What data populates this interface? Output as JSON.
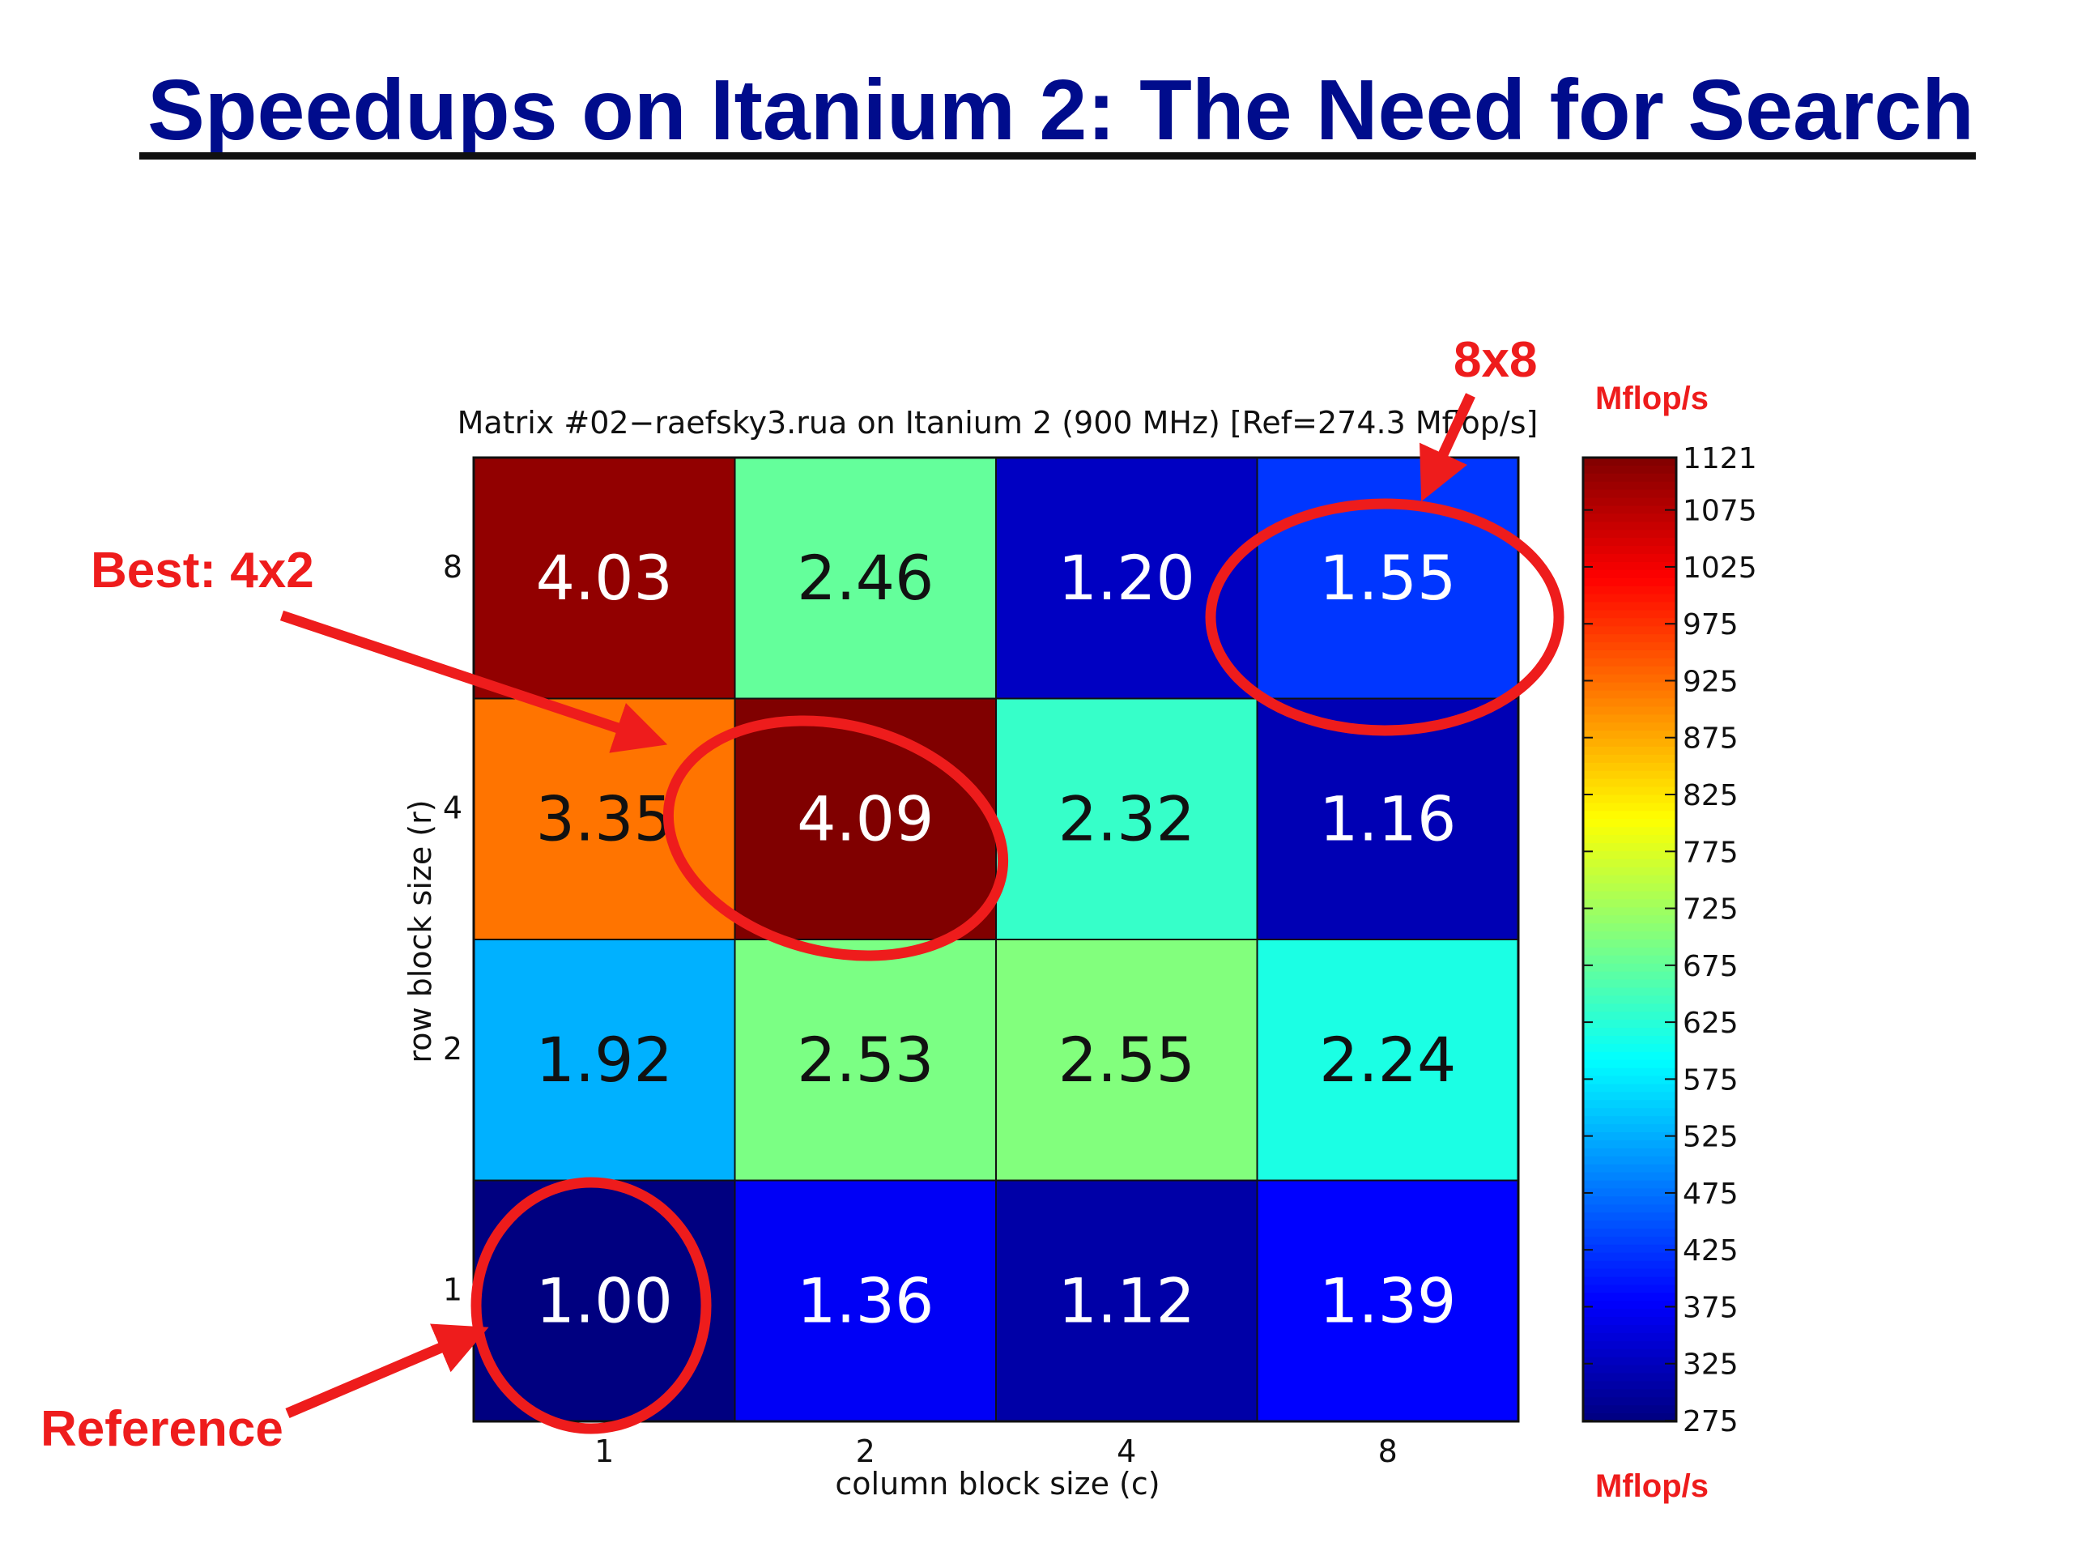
{
  "slide": {
    "title": "Speedups on Itanium 2: The Need for Search"
  },
  "annotations": {
    "best": "Best: 4x2",
    "eight": "8x8",
    "reference": "Reference",
    "unit_top": "Mflop/s",
    "unit_bottom": "Mflop/s",
    "color": "#ee1c1c"
  },
  "chart_data": {
    "type": "heatmap",
    "title": "Matrix #02−raefsky3.rua on Itanium 2 (900 MHz) [Ref=274.3 Mflop/s]",
    "xlabel": "column block size (c)",
    "ylabel": "row block size (r)",
    "x_categories": [
      "1",
      "2",
      "4",
      "8"
    ],
    "y_categories": [
      "1",
      "2",
      "4",
      "8"
    ],
    "cells": [
      {
        "r": "8",
        "c": "1",
        "speedup": "4.03"
      },
      {
        "r": "8",
        "c": "2",
        "speedup": "2.46"
      },
      {
        "r": "8",
        "c": "4",
        "speedup": "1.20"
      },
      {
        "r": "8",
        "c": "8",
        "speedup": "1.55"
      },
      {
        "r": "4",
        "c": "1",
        "speedup": "3.35"
      },
      {
        "r": "4",
        "c": "2",
        "speedup": "4.09"
      },
      {
        "r": "4",
        "c": "4",
        "speedup": "2.32"
      },
      {
        "r": "4",
        "c": "8",
        "speedup": "1.16"
      },
      {
        "r": "2",
        "c": "1",
        "speedup": "1.92"
      },
      {
        "r": "2",
        "c": "2",
        "speedup": "2.53"
      },
      {
        "r": "2",
        "c": "4",
        "speedup": "2.55"
      },
      {
        "r": "2",
        "c": "8",
        "speedup": "2.24"
      },
      {
        "r": "1",
        "c": "1",
        "speedup": "1.00"
      },
      {
        "r": "1",
        "c": "2",
        "speedup": "1.36"
      },
      {
        "r": "1",
        "c": "4",
        "speedup": "1.12"
      },
      {
        "r": "1",
        "c": "8",
        "speedup": "1.39"
      }
    ],
    "reference_mflops": 274.3,
    "colorbar": {
      "label": "Mflop/s",
      "min": 274.3,
      "max": 1121,
      "ticks": [
        "1121",
        "1075",
        "1025",
        "975",
        "925",
        "875",
        "825",
        "775",
        "725",
        "675",
        "625",
        "575",
        "525",
        "475",
        "425",
        "375",
        "325",
        "275"
      ],
      "colormap": "jet"
    },
    "highlighted": [
      "4x2",
      "8x8",
      "1x1"
    ]
  }
}
